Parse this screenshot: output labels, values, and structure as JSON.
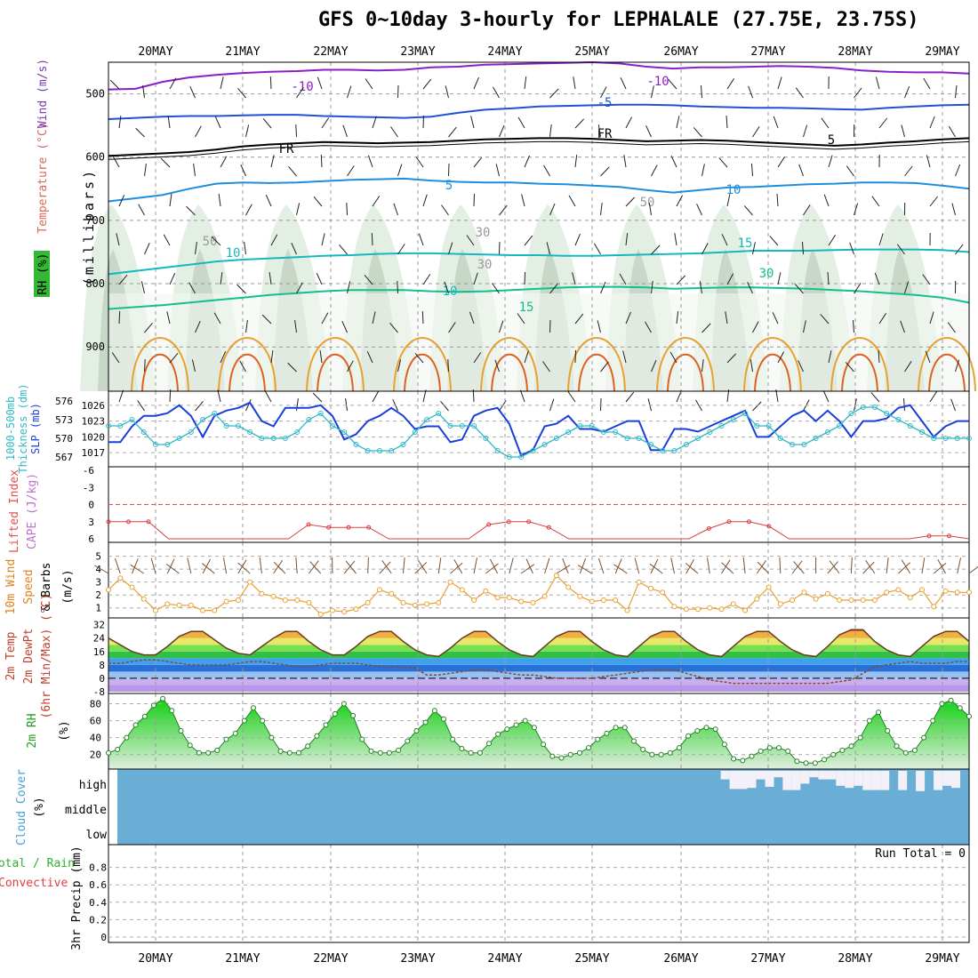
{
  "title": "GFS 0~10day 3-hourly for LEPHALALE (27.75E, 23.75S)",
  "dates": [
    "20MAY",
    "21MAY",
    "22MAY",
    "23MAY",
    "24MAY",
    "25MAY",
    "26MAY",
    "27MAY",
    "28MAY",
    "29MAY"
  ],
  "chart_data": [
    {
      "type": "heatmap",
      "panel": "upper-air cross section",
      "ylabel_parts": [
        "RH (%)",
        "Temperature (°C)",
        "Wind (m/s)"
      ],
      "yaxis_label": "(millibars)",
      "y_ticks": [
        "500",
        "600",
        "700",
        "800",
        "900"
      ],
      "ylim": [
        450,
        970
      ],
      "contour_labels": [
        "-10",
        "-10",
        "-5",
        "FR",
        "FR",
        "5",
        "5",
        "10",
        "10",
        "10",
        "15",
        "15",
        "30",
        "30",
        "30",
        "50",
        "50"
      ],
      "isotherms": [
        {
          "name": "-10",
          "values": [
            493,
            492,
            481,
            474,
            470,
            467,
            465,
            464,
            462,
            462,
            463,
            462,
            458,
            457,
            454,
            453,
            452,
            451,
            450,
            452,
            457,
            460,
            458,
            458,
            457,
            456,
            457,
            459,
            463,
            465,
            466,
            466,
            468
          ]
        },
        {
          "name": "-5",
          "values": [
            540,
            538,
            536,
            535,
            535,
            534,
            533,
            533,
            535,
            536,
            537,
            538,
            536,
            530,
            525,
            523,
            520,
            519,
            518,
            517,
            517,
            518,
            520,
            521,
            522,
            522,
            523,
            524,
            525,
            522,
            520,
            518,
            517
          ]
        },
        {
          "name": "FR",
          "values": [
            598,
            596,
            594,
            592,
            588,
            583,
            580,
            578,
            576,
            577,
            578,
            577,
            576,
            574,
            572,
            571,
            570,
            570,
            571,
            573,
            575,
            574,
            573,
            574,
            576,
            578,
            580,
            582,
            580,
            577,
            575,
            572,
            570
          ]
        },
        {
          "name": "5",
          "values": [
            670,
            665,
            660,
            650,
            642,
            640,
            641,
            640,
            638,
            636,
            635,
            634,
            637,
            639,
            640,
            640,
            642,
            643,
            645,
            647,
            652,
            656,
            652,
            648,
            647,
            645,
            643,
            642,
            640,
            640,
            641,
            645,
            650
          ]
        },
        {
          "name": "10",
          "values": [
            785,
            780,
            775,
            770,
            765,
            762,
            760,
            758,
            756,
            755,
            753,
            752,
            752,
            753,
            754,
            755,
            755,
            756,
            756,
            755,
            754,
            753,
            752,
            750,
            748,
            748,
            748,
            747,
            746,
            746,
            746,
            747,
            750
          ]
        },
        {
          "name": "15",
          "values": [
            840,
            837,
            834,
            830,
            826,
            822,
            818,
            815,
            812,
            810,
            810,
            810,
            812,
            813,
            812,
            810,
            808,
            806,
            805,
            805,
            806,
            808,
            807,
            806,
            806,
            807,
            808,
            810,
            812,
            815,
            818,
            822,
            830
          ]
        }
      ]
    },
    {
      "type": "line",
      "panel": "slp-thickness",
      "ylabel_parts": [
        "1000-500mb",
        "Thickness (dm)",
        "SLP (mb)"
      ],
      "left_ticks": [
        "567",
        "570",
        "573",
        "576"
      ],
      "right_ticks": [
        "1017",
        "1020",
        "1023",
        "1026"
      ],
      "series": [
        {
          "name": "SLP",
          "axis": "right",
          "ylim": [
            1015,
            1028
          ],
          "values": [
            1019,
            1019,
            1022,
            1024,
            1024,
            1024.5,
            1026,
            1024,
            1020,
            1024,
            1025,
            1025.5,
            1026.5,
            1023,
            1022,
            1025.5,
            1025.5,
            1025.5,
            1026,
            1024,
            1019.5,
            1020.5,
            1023,
            1024,
            1025.5,
            1024,
            1021.5,
            1022,
            1022,
            1019,
            1019.5,
            1024,
            1025,
            1025.5,
            1022.5,
            1016.5,
            1017.5,
            1022,
            1022.5,
            1024,
            1021.5,
            1021.5,
            1021,
            1022,
            1023,
            1023,
            1017.5,
            1017.5,
            1021.5,
            1021.5,
            1021,
            1022,
            1023,
            1024,
            1025,
            1020,
            1020,
            1022,
            1024,
            1025,
            1023,
            1025,
            1023,
            1020,
            1023,
            1023,
            1023.5,
            1025.5,
            1026,
            1023,
            1020,
            1022,
            1023,
            1023
          ]
        },
        {
          "name": "Thickness",
          "axis": "left",
          "ylim": [
            566,
            577
          ],
          "values": [
            572,
            572,
            573,
            571,
            569,
            569,
            570,
            571,
            573,
            574,
            572,
            572,
            571,
            570,
            570,
            570,
            571,
            573,
            574,
            572,
            571,
            569,
            568,
            568,
            568,
            569,
            571,
            573,
            574,
            572,
            572,
            572,
            570,
            568,
            567,
            567,
            568,
            569,
            570,
            571,
            572,
            572,
            571,
            571,
            570,
            570,
            569,
            568,
            568,
            569,
            570,
            571,
            572,
            573,
            574,
            572,
            572,
            570,
            569,
            569,
            570,
            571,
            572,
            574,
            575,
            575,
            574,
            573,
            572,
            571,
            570,
            570,
            570,
            570
          ]
        }
      ]
    },
    {
      "type": "line",
      "panel": "stability",
      "ylabel_parts": [
        "Lifted Index",
        "CAPE (J/kg)"
      ],
      "y_ticks": [
        "-6",
        "-3",
        "0",
        "3",
        "6"
      ],
      "ylim": [
        -6,
        6
      ],
      "series": [
        {
          "name": "Lifted Index",
          "values": [
            3,
            3,
            3,
            6,
            6,
            6,
            6,
            6,
            6,
            6,
            3.5,
            4,
            4,
            4,
            6,
            6,
            6,
            6,
            6,
            3.5,
            3,
            3,
            4,
            6,
            6,
            6,
            6,
            6,
            6,
            6,
            4.2,
            3,
            3,
            3.8,
            6,
            6,
            6,
            6,
            6,
            6,
            6,
            5.5,
            5.5,
            6
          ]
        }
      ]
    },
    {
      "type": "line",
      "panel": "10m-wind",
      "ylabel_parts": [
        "10m Wind",
        "Speed",
        "& Barbs",
        "(m/s)"
      ],
      "y_ticks": [
        "1",
        "2",
        "3",
        "4",
        "5"
      ],
      "ylim": [
        0.5,
        5.8
      ],
      "series": [
        {
          "name": "Speed",
          "values": [
            2.4,
            3.3,
            2.6,
            1.7,
            0.8,
            1.3,
            1.2,
            1.2,
            0.8,
            0.8,
            1.5,
            1.6,
            3.0,
            2.1,
            1.9,
            1.6,
            1.6,
            1.4,
            0.5,
            0.8,
            0.7,
            0.9,
            1.4,
            2.4,
            2.1,
            1.4,
            1.2,
            1.3,
            1.4,
            3.0,
            2.4,
            1.6,
            2.3,
            1.8,
            1.8,
            1.5,
            1.4,
            1.9,
            3.5,
            2.6,
            1.9,
            1.5,
            1.6,
            1.6,
            0.8,
            3.0,
            2.5,
            2.2,
            1.1,
            0.9,
            0.9,
            1.0,
            0.9,
            1.3,
            0.8,
            1.7,
            2.6,
            1.3,
            1.6,
            2.2,
            1.7,
            2.1,
            1.6,
            1.6,
            1.6,
            1.6,
            2.2,
            2.4,
            1.8,
            2.4,
            1.1,
            2.3,
            2.2,
            2.2
          ]
        }
      ]
    },
    {
      "type": "area",
      "panel": "2m-temperature",
      "ylabel_parts": [
        "2m Temp",
        "2m DewPt",
        "(6hr Min/Max) (°C)"
      ],
      "y_ticks": [
        "-8",
        "0",
        "8",
        "16",
        "24",
        "32"
      ],
      "ylim": [
        -8,
        35
      ],
      "series": [
        {
          "name": "2m Temp",
          "values": [
            24,
            20,
            16,
            14,
            14,
            19,
            25,
            28,
            28,
            23,
            18,
            15,
            14,
            19,
            24,
            28,
            28,
            22,
            17,
            14,
            14,
            19,
            25,
            28,
            28,
            22,
            17,
            14,
            13,
            18,
            24,
            28,
            28,
            22,
            17,
            14,
            13,
            19,
            25,
            28,
            28,
            22,
            17,
            14,
            13,
            19,
            25,
            28,
            28,
            22,
            17,
            14,
            13,
            19,
            25,
            28,
            28,
            22,
            17,
            14,
            13,
            19,
            26,
            29,
            29,
            22,
            17,
            14,
            13,
            19,
            25,
            28,
            28,
            22
          ]
        },
        {
          "name": "2m DewPt",
          "values": [
            9,
            9,
            10,
            11,
            11,
            10,
            9,
            8,
            8,
            8,
            8,
            9,
            10,
            10,
            9,
            8,
            7,
            7,
            8,
            9,
            9,
            9,
            8,
            7,
            7,
            7,
            6,
            2,
            2,
            3,
            4,
            5,
            5,
            4,
            3,
            2,
            2,
            1,
            0,
            0,
            0,
            0,
            1,
            2,
            3,
            4,
            5,
            5,
            5,
            3,
            1,
            -1,
            -2,
            -3,
            -3,
            -3,
            -3,
            -3,
            -3,
            -3,
            -3,
            -3,
            -2,
            -1,
            3,
            7,
            8,
            9,
            10,
            9,
            9,
            9,
            10,
            10
          ]
        }
      ]
    },
    {
      "type": "area",
      "panel": "2m-rh",
      "ylabel_parts": [
        "2m RH",
        "(%)"
      ],
      "y_ticks": [
        "20",
        "40",
        "60",
        "80"
      ],
      "ylim": [
        5,
        90
      ],
      "series": [
        {
          "name": "2m RH",
          "values": [
            22,
            26,
            40,
            55,
            65,
            78,
            86,
            72,
            48,
            31,
            22,
            22,
            25,
            38,
            45,
            60,
            75,
            60,
            40,
            24,
            22,
            22,
            30,
            42,
            55,
            68,
            80,
            66,
            38,
            24,
            22,
            22,
            25,
            36,
            48,
            58,
            72,
            62,
            38,
            27,
            22,
            22,
            33,
            44,
            50,
            55,
            60,
            52,
            32,
            18,
            16,
            20,
            22,
            28,
            38,
            45,
            52,
            52,
            36,
            26,
            20,
            20,
            22,
            28,
            42,
            48,
            52,
            50,
            32,
            15,
            13,
            18,
            24,
            28,
            28,
            24,
            12,
            10,
            10,
            14,
            20,
            25,
            30,
            40,
            60,
            70,
            48,
            30,
            22,
            25,
            40,
            60,
            80,
            84,
            75,
            65
          ]
        }
      ]
    },
    {
      "type": "bar",
      "panel": "cloud-cover",
      "ylabel_parts": [
        "Cloud Cover",
        "(%)"
      ],
      "level_labels": [
        "high",
        "middle",
        "low"
      ],
      "high_clear_fraction": [
        0,
        0,
        0,
        0,
        0,
        0,
        0,
        0,
        0,
        0,
        0,
        0,
        0,
        0,
        0,
        0,
        0,
        0,
        0,
        0,
        0,
        0,
        0,
        0,
        0,
        0,
        0,
        0,
        0,
        0,
        0,
        0,
        0,
        0,
        0,
        0,
        0,
        0,
        0,
        0,
        0,
        0,
        0,
        0,
        0,
        0,
        0,
        0,
        0,
        0,
        0,
        0,
        0,
        0,
        0,
        0,
        0,
        0,
        0,
        0,
        0,
        0,
        0,
        0,
        0,
        0,
        0,
        0,
        0.4,
        0.85,
        0.85,
        0.8,
        0.4,
        0.75,
        0.3,
        0.9,
        0.9,
        0.6,
        0.3,
        0.4,
        0.4,
        0.7,
        0.8,
        0.7,
        0.9,
        0.9,
        0.9,
        0,
        0.9,
        0,
        0.95,
        0,
        0.9,
        0.7,
        0.8,
        0
      ]
    },
    {
      "type": "bar",
      "panel": "precipitation",
      "ylabel_parts": [
        "Total / Rain",
        "Convective",
        "3hr Precip (mm)"
      ],
      "y_ticks": [
        "0",
        "0.2",
        "0.4",
        "0.6",
        "0.8"
      ],
      "ylim": [
        0,
        1.0
      ],
      "annotation": "Run Total = 0",
      "values": []
    }
  ]
}
